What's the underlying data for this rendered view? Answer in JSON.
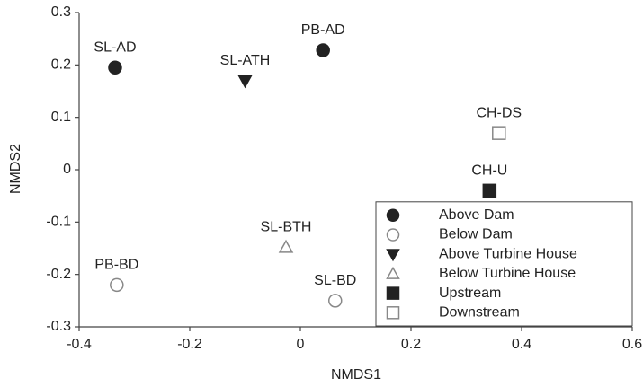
{
  "chart_data": {
    "type": "scatter",
    "x_label": "NMDS1",
    "y_label": "NMDS2",
    "xlim": [
      -0.4,
      0.6
    ],
    "xticks": [
      -0.4,
      -0.2,
      0,
      0.2,
      0.4,
      0.6
    ],
    "ylim": [
      -0.3,
      0.3
    ],
    "yticks": [
      0.3,
      0.2,
      0.1,
      0,
      -0.1,
      -0.2,
      -0.3
    ],
    "legend_position": "lower right",
    "series": [
      {
        "name": "Above Dam",
        "marker": "circle",
        "filled": true,
        "color": "#222222",
        "x": [
          -0.335,
          0.041
        ],
        "y": [
          0.195,
          0.228
        ],
        "labels": [
          "SL-AD",
          "PB-AD"
        ]
      },
      {
        "name": "Below Dam",
        "marker": "circle",
        "filled": false,
        "color": "#888888",
        "x": [
          -0.332,
          0.063
        ],
        "y": [
          -0.22,
          -0.25
        ],
        "labels": [
          "PB-BD",
          "SL-BD"
        ]
      },
      {
        "name": "Above Turbine House",
        "marker": "triangle-down",
        "filled": true,
        "color": "#222222",
        "x": [
          -0.1
        ],
        "y": [
          0.17
        ],
        "labels": [
          "SL-ATH"
        ]
      },
      {
        "name": "Below Turbine House",
        "marker": "triangle-up",
        "filled": false,
        "color": "#888888",
        "x": [
          -0.026
        ],
        "y": [
          -0.148
        ],
        "labels": [
          "SL-BTH"
        ]
      },
      {
        "name": "Upstream",
        "marker": "square",
        "filled": true,
        "color": "#222222",
        "x": [
          0.342
        ],
        "y": [
          -0.04
        ],
        "labels": [
          "CH-U"
        ]
      },
      {
        "name": "Downstream",
        "marker": "square",
        "filled": false,
        "color": "#888888",
        "x": [
          0.359
        ],
        "y": [
          0.07
        ],
        "labels": [
          "CH-DS"
        ]
      }
    ]
  }
}
